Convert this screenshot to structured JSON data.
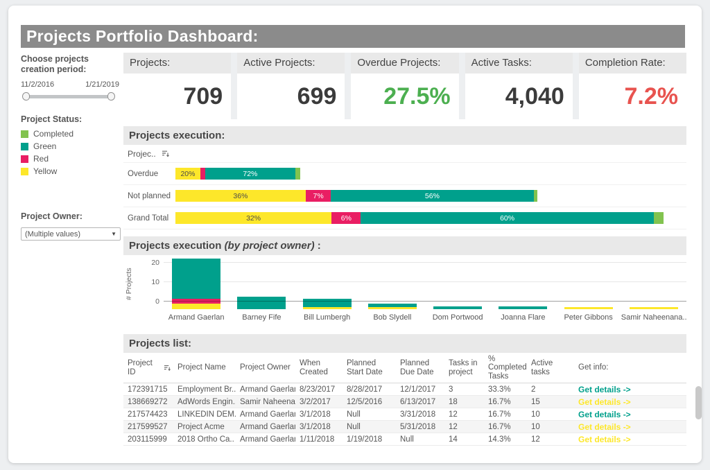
{
  "page": {
    "title": "Projects Portfolio Dashboard:"
  },
  "status_colors": {
    "Completed": "#82c34f",
    "Green": "#00a08c",
    "Red": "#e91e63",
    "Yellow": "#fde72a"
  },
  "sidebar": {
    "period_label": "Choose projects creation period:",
    "period_start": "11/2/2016",
    "period_end": "1/21/2019",
    "status_label": "Project Status:",
    "status_items": [
      {
        "label": "Completed",
        "color": "#82c34f"
      },
      {
        "label": "Green",
        "color": "#00a08c"
      },
      {
        "label": "Red",
        "color": "#e91e63"
      },
      {
        "label": "Yellow",
        "color": "#fde72a"
      }
    ],
    "owner_label": "Project Owner:",
    "owner_value": "(Multiple values)"
  },
  "kpis": [
    {
      "label": "Projects:",
      "value": "709",
      "color": "#3b3b3b"
    },
    {
      "label": "Active Projects:",
      "value": "699",
      "color": "#3b3b3b"
    },
    {
      "label": "Overdue Projects:",
      "value": "27.5%",
      "color": "#4caf50"
    },
    {
      "label": "Active Tasks:",
      "value": "4,040",
      "color": "#3b3b3b"
    },
    {
      "label": "Completion Rate:",
      "value": "7.2%",
      "color": "#e8534f"
    }
  ],
  "chart_data": [
    {
      "type": "bar",
      "orientation": "horizontal",
      "stacked": true,
      "title": "Projects execution:",
      "field_label": "Projec..",
      "unit": "percent of row total",
      "categories": [
        "Overdue",
        "Not planned",
        "Grand Total"
      ],
      "series": [
        {
          "name": "Yellow",
          "values": [
            20,
            36,
            32
          ]
        },
        {
          "name": "Red",
          "values": [
            4,
            7,
            6
          ]
        },
        {
          "name": "Green",
          "values": [
            72,
            56,
            60
          ]
        },
        {
          "name": "Completed",
          "values": [
            4,
            1,
            2
          ]
        }
      ],
      "row_relative_width_pct": [
        24.4,
        70.8,
        95.5
      ],
      "label_min_pct": 6,
      "legend_position": "left-sidebar",
      "grid": false
    },
    {
      "type": "bar",
      "orientation": "vertical",
      "stacked": true,
      "title": "Projects execution (by project owner) :",
      "title_main": "Projects execution ",
      "title_italic": "(by project owner)",
      "title_suffix": " :",
      "xlabel": "",
      "ylabel": "# Projects",
      "yticks": [
        0,
        10,
        20
      ],
      "ylim": [
        -4,
        24
      ],
      "grid": true,
      "categories": [
        "Armand Gaerlan",
        "Barney Fife",
        "Bill Lumbergh",
        "Bob Slydell",
        "Dom Portwood",
        "Joanna Flare",
        "Peter Gibbons",
        "Samir Naheenana.."
      ],
      "series": [
        {
          "name": "Yellow",
          "values": [
            3,
            0,
            1,
            1,
            0,
            0,
            1,
            1
          ]
        },
        {
          "name": "Red",
          "values": [
            2.5,
            0,
            0,
            0,
            0,
            0,
            0,
            0
          ]
        },
        {
          "name": "Green",
          "values": [
            20.5,
            6.5,
            4.5,
            2,
            1.5,
            1.5,
            0,
            0
          ]
        }
      ]
    }
  ],
  "table": {
    "title": "Projects list:",
    "headers": [
      "Project ID",
      "Project Name",
      "Project Owner",
      "When Created",
      "Planned Start Date",
      "Planned Due Date",
      "Tasks in project",
      "% Completed Tasks",
      "Active tasks",
      "Get info:"
    ],
    "link_text": "Get details ->",
    "link_colors": {
      "green": "#00a08c",
      "yellow": "#fde72a"
    },
    "rows": [
      {
        "cells": [
          "172391715",
          "Employment Br..",
          "Armand Gaerlan",
          "8/23/2017",
          "8/28/2017",
          "12/1/2017",
          "3",
          "33.3%",
          "2"
        ],
        "link_style": "green"
      },
      {
        "cells": [
          "138669272",
          "AdWords Engin..",
          "Samir Naheena..",
          "3/2/2017",
          "12/5/2016",
          "6/13/2017",
          "18",
          "16.7%",
          "15"
        ],
        "link_style": "yellow"
      },
      {
        "cells": [
          "217574423",
          "LINKEDIN DEM..",
          "Armand Gaerlan",
          "3/1/2018",
          "Null",
          "3/31/2018",
          "12",
          "16.7%",
          "10"
        ],
        "link_style": "green"
      },
      {
        "cells": [
          "217599527",
          "Project Acme",
          "Armand Gaerlan",
          "3/1/2018",
          "Null",
          "5/31/2018",
          "12",
          "16.7%",
          "10"
        ],
        "link_style": "yellow"
      },
      {
        "cells": [
          "203115999",
          "2018 Ortho Ca..",
          "Armand Gaerlan",
          "1/11/2018",
          "1/19/2018",
          "Null",
          "14",
          "14.3%",
          "12"
        ],
        "link_style": "yellow"
      }
    ]
  }
}
